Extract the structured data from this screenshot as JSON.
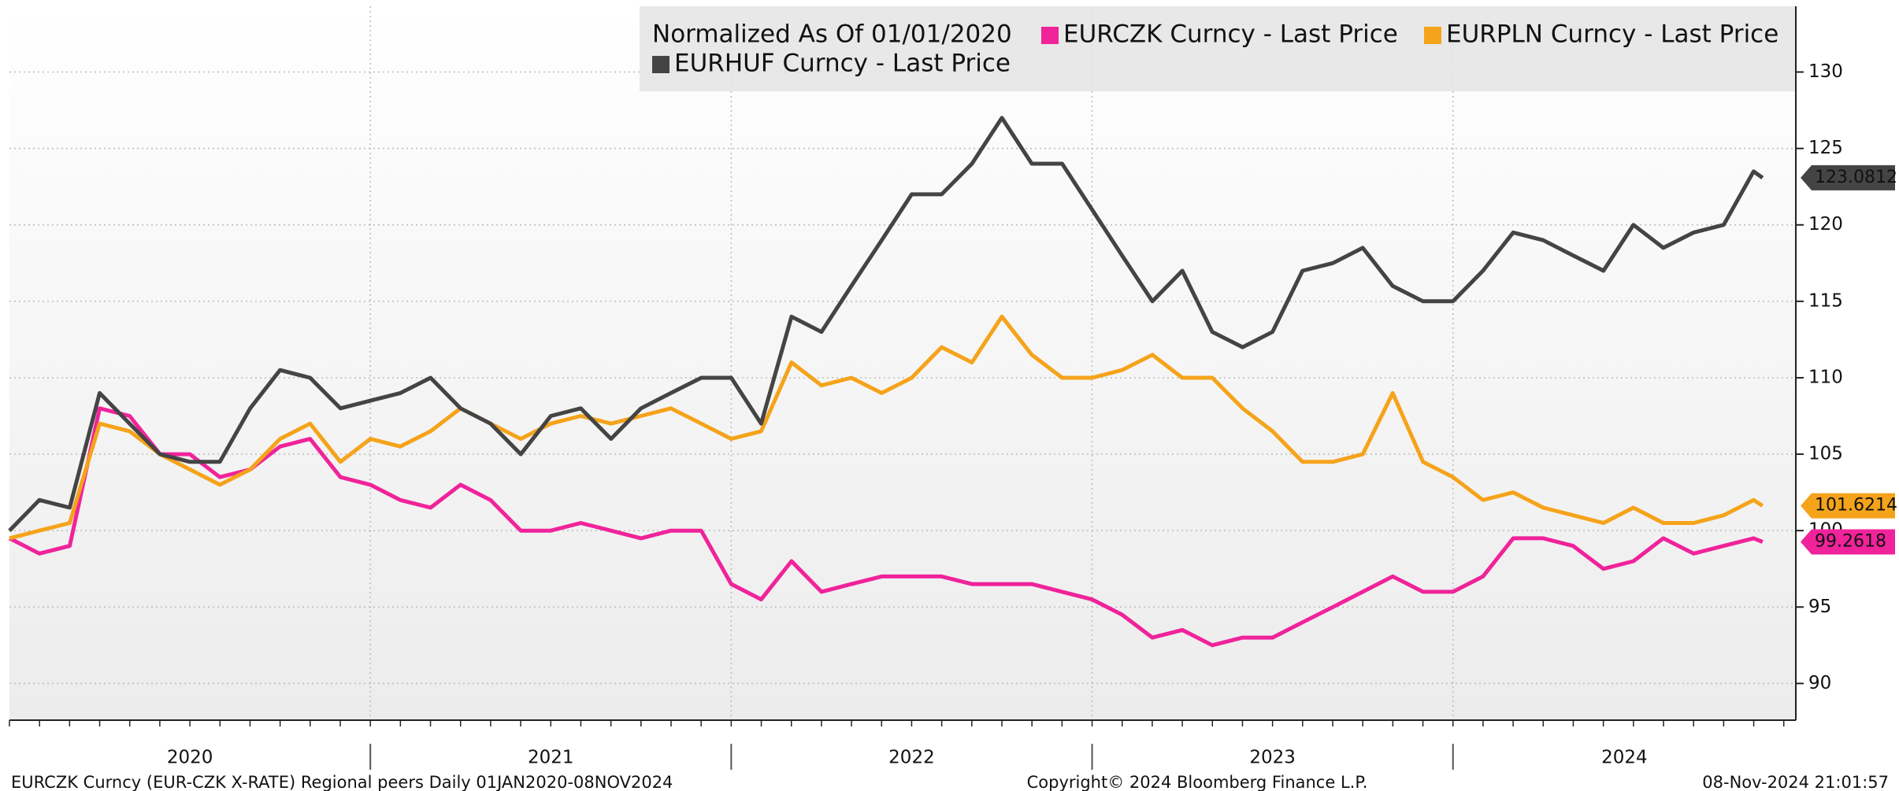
{
  "chart_data": {
    "type": "line",
    "legend_title": "Normalized As Of 01/01/2020",
    "footer_left": "EURCZK Curncy (EUR-CZK X-RATE) Regional peers  Daily 01JAN2020-08NOV2024",
    "footer_center": "Copyright© 2024 Bloomberg Finance L.P.",
    "footer_right": "08-Nov-2024 21:01:57",
    "x": [
      2020,
      2020.083,
      2020.167,
      2020.25,
      2020.333,
      2020.417,
      2020.5,
      2020.583,
      2020.667,
      2020.75,
      2020.833,
      2020.917,
      2021,
      2021.083,
      2021.167,
      2021.25,
      2021.333,
      2021.417,
      2021.5,
      2021.583,
      2021.667,
      2021.75,
      2021.833,
      2021.917,
      2022,
      2022.083,
      2022.167,
      2022.25,
      2022.333,
      2022.417,
      2022.5,
      2022.583,
      2022.667,
      2022.75,
      2022.833,
      2022.917,
      2023,
      2023.083,
      2023.167,
      2023.25,
      2023.333,
      2023.417,
      2023.5,
      2023.583,
      2023.667,
      2023.75,
      2023.833,
      2023.917,
      2024,
      2024.083,
      2024.167,
      2024.25,
      2024.333,
      2024.417,
      2024.5,
      2024.583,
      2024.667,
      2024.75,
      2024.833,
      2024.858
    ],
    "series": [
      {
        "name": "EURCZK Curncy - Last Price",
        "color": "#f0239a",
        "values": [
          99.5,
          98.5,
          99,
          108,
          107.5,
          105,
          105,
          103.5,
          104,
          105.5,
          106,
          103.5,
          103,
          102,
          101.5,
          103,
          102,
          100,
          100,
          100.5,
          100,
          99.5,
          100,
          100,
          96.5,
          95.5,
          98,
          96,
          96.5,
          97,
          97,
          97,
          96.5,
          96.5,
          96.5,
          96,
          95.5,
          94.5,
          93,
          93.5,
          92.5,
          93,
          93,
          94,
          95,
          96,
          97,
          96,
          96,
          97,
          99.5,
          99.5,
          99,
          97.5,
          98,
          99.5,
          98.5,
          99,
          99.5,
          99.2618
        ]
      },
      {
        "name": "EURPLN Curncy - Last Price",
        "color": "#f5a31b",
        "values": [
          99.5,
          100,
          100.5,
          107,
          106.5,
          105,
          104,
          103,
          104,
          106,
          107,
          104.5,
          106,
          105.5,
          106.5,
          108,
          107,
          106,
          107,
          107.5,
          107,
          107.5,
          108,
          107,
          106,
          106.5,
          111,
          109.5,
          110,
          109,
          110,
          112,
          111,
          114,
          111.5,
          110,
          110,
          110.5,
          111.5,
          110,
          110,
          108,
          106.5,
          104.5,
          104.5,
          105,
          109,
          104.5,
          103.5,
          102,
          102.5,
          101.5,
          101,
          100.5,
          101.5,
          100.5,
          100.5,
          101,
          102,
          101.6214
        ]
      },
      {
        "name": "EURHUF Curncy - Last Price",
        "color": "#444444",
        "values": [
          100,
          102,
          101.5,
          109,
          107,
          105,
          104.5,
          104.5,
          108,
          110.5,
          110,
          108,
          108.5,
          109,
          110,
          108,
          107,
          105,
          107.5,
          108,
          106,
          108,
          109,
          110,
          110,
          107,
          114,
          113,
          116,
          119,
          122,
          122,
          124,
          127,
          124,
          124,
          121,
          118,
          115,
          117,
          113,
          112,
          113,
          117,
          117.5,
          118.5,
          116,
          115,
          115,
          117,
          119.5,
          119,
          118,
          117,
          120,
          118.5,
          119.5,
          120,
          123.5,
          123.0812
        ]
      }
    ],
    "xlim": [
      2020,
      2024.95
    ],
    "xticks": [
      2020,
      2021,
      2022,
      2023,
      2024
    ],
    "ylim": [
      87.6,
      134.3
    ],
    "yticks": [
      90,
      95,
      100,
      105,
      110,
      115,
      120,
      125,
      130
    ],
    "grid": true
  }
}
